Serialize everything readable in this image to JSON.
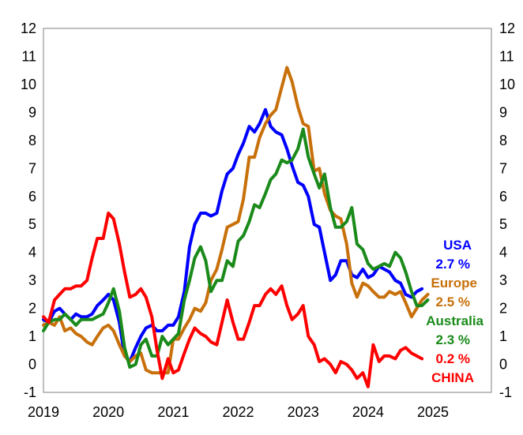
{
  "chart_data": {
    "type": "line",
    "title": "",
    "xlabel": "",
    "ylabel": "",
    "ylim": [
      -1,
      12
    ],
    "xlim": [
      2019.0,
      2025.9
    ],
    "y_ticks": [
      "12",
      "11",
      "10",
      "9",
      "8",
      "7",
      "6",
      "5",
      "4",
      "3",
      "2",
      "1",
      "0",
      "-1"
    ],
    "x_ticks": [
      "2019",
      "2020",
      "2021",
      "2022",
      "2023",
      "2024",
      "2025"
    ],
    "grid": false,
    "legend": "right-side labels",
    "series": [
      {
        "name": "USA",
        "color": "#0000ff",
        "latest": "2.7 %",
        "x": [
          2019.0,
          2019.08,
          2019.17,
          2019.25,
          2019.33,
          2019.42,
          2019.5,
          2019.58,
          2019.67,
          2019.75,
          2019.83,
          2019.92,
          2020.0,
          2020.08,
          2020.17,
          2020.25,
          2020.33,
          2020.42,
          2020.5,
          2020.58,
          2020.67,
          2020.75,
          2020.83,
          2020.92,
          2021.0,
          2021.08,
          2021.17,
          2021.25,
          2021.33,
          2021.42,
          2021.5,
          2021.58,
          2021.67,
          2021.75,
          2021.83,
          2021.92,
          2022.0,
          2022.08,
          2022.17,
          2022.25,
          2022.33,
          2022.42,
          2022.5,
          2022.58,
          2022.67,
          2022.75,
          2022.83,
          2022.92,
          2023.0,
          2023.08,
          2023.17,
          2023.25,
          2023.33,
          2023.42,
          2023.5,
          2023.58,
          2023.67,
          2023.75,
          2023.83,
          2023.92,
          2024.0,
          2024.08,
          2024.17,
          2024.25,
          2024.33,
          2024.42,
          2024.5,
          2024.58,
          2024.67,
          2024.75,
          2024.83
        ],
        "values": [
          1.6,
          1.5,
          1.9,
          2.0,
          1.8,
          1.6,
          1.8,
          1.7,
          1.7,
          1.8,
          2.1,
          2.3,
          2.5,
          2.3,
          1.5,
          0.3,
          0.1,
          0.6,
          1.0,
          1.3,
          1.4,
          1.2,
          1.2,
          1.4,
          1.4,
          1.7,
          2.6,
          4.2,
          5.0,
          5.4,
          5.4,
          5.3,
          5.4,
          6.2,
          6.8,
          7.0,
          7.5,
          7.9,
          8.5,
          8.3,
          8.6,
          9.1,
          8.5,
          8.3,
          8.2,
          7.7,
          7.1,
          6.5,
          6.4,
          6.0,
          5.0,
          4.9,
          4.0,
          3.0,
          3.2,
          3.7,
          3.7,
          3.2,
          3.1,
          3.4,
          3.1,
          3.2,
          3.5,
          3.4,
          3.3,
          3.0,
          2.9,
          2.5,
          2.4,
          2.6,
          2.7
        ]
      },
      {
        "name": "Europe",
        "color": "#c8700a",
        "latest": "2.5 %",
        "x": [
          2019.0,
          2019.08,
          2019.17,
          2019.25,
          2019.33,
          2019.42,
          2019.5,
          2019.58,
          2019.67,
          2019.75,
          2019.83,
          2019.92,
          2020.0,
          2020.08,
          2020.17,
          2020.25,
          2020.33,
          2020.42,
          2020.5,
          2020.58,
          2020.67,
          2020.75,
          2020.83,
          2020.92,
          2021.0,
          2021.08,
          2021.17,
          2021.25,
          2021.33,
          2021.42,
          2021.5,
          2021.58,
          2021.67,
          2021.75,
          2021.83,
          2021.92,
          2022.0,
          2022.08,
          2022.17,
          2022.25,
          2022.33,
          2022.42,
          2022.5,
          2022.58,
          2022.67,
          2022.75,
          2022.83,
          2022.92,
          2023.0,
          2023.08,
          2023.17,
          2023.25,
          2023.33,
          2023.42,
          2023.5,
          2023.58,
          2023.67,
          2023.75,
          2023.83,
          2023.92,
          2024.0,
          2024.08,
          2024.17,
          2024.25,
          2024.33,
          2024.42,
          2024.5,
          2024.58,
          2024.67,
          2024.75,
          2024.83,
          2024.92
        ],
        "values": [
          1.4,
          1.5,
          1.4,
          1.7,
          1.2,
          1.3,
          1.1,
          1.0,
          0.8,
          0.7,
          1.0,
          1.3,
          1.4,
          1.2,
          0.7,
          0.3,
          0.1,
          0.3,
          0.4,
          -0.2,
          -0.3,
          -0.3,
          -0.3,
          -0.3,
          0.9,
          0.9,
          1.3,
          1.6,
          2.0,
          1.9,
          2.2,
          3.0,
          3.4,
          4.1,
          4.9,
          5.0,
          5.1,
          5.9,
          7.4,
          7.4,
          8.1,
          8.6,
          8.9,
          9.1,
          9.9,
          10.6,
          10.1,
          9.2,
          8.6,
          8.5,
          6.9,
          7.0,
          6.1,
          5.5,
          5.3,
          5.2,
          4.3,
          2.9,
          2.4,
          2.9,
          2.8,
          2.6,
          2.4,
          2.4,
          2.6,
          2.5,
          2.6,
          2.2,
          1.7,
          2.0,
          2.3,
          2.5
        ]
      },
      {
        "name": "Australia",
        "color": "#1a8a1a",
        "latest": "2.3 %",
        "x": [
          2019.0,
          2019.08,
          2019.17,
          2019.25,
          2019.33,
          2019.42,
          2019.5,
          2019.58,
          2019.67,
          2019.75,
          2019.83,
          2019.92,
          2020.0,
          2020.08,
          2020.17,
          2020.25,
          2020.33,
          2020.42,
          2020.5,
          2020.58,
          2020.67,
          2020.75,
          2020.83,
          2020.92,
          2021.0,
          2021.08,
          2021.17,
          2021.25,
          2021.33,
          2021.42,
          2021.5,
          2021.58,
          2021.67,
          2021.75,
          2021.83,
          2021.92,
          2022.0,
          2022.08,
          2022.17,
          2022.25,
          2022.33,
          2022.42,
          2022.5,
          2022.58,
          2022.67,
          2022.75,
          2022.83,
          2022.92,
          2023.0,
          2023.08,
          2023.17,
          2023.25,
          2023.33,
          2023.42,
          2023.5,
          2023.58,
          2023.67,
          2023.75,
          2023.83,
          2023.92,
          2024.0,
          2024.08,
          2024.17,
          2024.25,
          2024.33,
          2024.42,
          2024.5,
          2024.58,
          2024.67,
          2024.75,
          2024.83,
          2024.92
        ],
        "values": [
          1.2,
          1.5,
          1.6,
          1.6,
          1.8,
          1.6,
          1.4,
          1.6,
          1.6,
          1.6,
          1.7,
          1.8,
          2.2,
          2.7,
          1.9,
          0.6,
          -0.1,
          0.0,
          0.7,
          0.9,
          0.3,
          0.3,
          1.0,
          0.7,
          0.9,
          1.1,
          2.3,
          3.0,
          3.8,
          4.2,
          3.7,
          2.6,
          3.0,
          3.0,
          3.7,
          3.5,
          4.4,
          4.6,
          5.1,
          5.7,
          5.6,
          6.1,
          6.6,
          6.8,
          7.3,
          7.2,
          7.3,
          7.7,
          8.4,
          7.4,
          6.8,
          6.3,
          6.8,
          5.6,
          4.9,
          4.9,
          5.1,
          5.6,
          4.3,
          4.1,
          3.6,
          3.4,
          3.5,
          3.6,
          3.5,
          4.0,
          3.8,
          3.3,
          2.6,
          2.1,
          2.1,
          2.3
        ]
      },
      {
        "name": "CHINA",
        "color": "#ff0000",
        "latest": "0.2 %",
        "x": [
          2019.0,
          2019.08,
          2019.17,
          2019.25,
          2019.33,
          2019.42,
          2019.5,
          2019.58,
          2019.67,
          2019.75,
          2019.83,
          2019.92,
          2020.0,
          2020.08,
          2020.17,
          2020.25,
          2020.33,
          2020.42,
          2020.5,
          2020.58,
          2020.67,
          2020.75,
          2020.83,
          2020.92,
          2021.0,
          2021.08,
          2021.17,
          2021.25,
          2021.33,
          2021.42,
          2021.5,
          2021.58,
          2021.67,
          2021.75,
          2021.83,
          2021.92,
          2022.0,
          2022.08,
          2022.17,
          2022.25,
          2022.33,
          2022.42,
          2022.5,
          2022.58,
          2022.67,
          2022.75,
          2022.83,
          2022.92,
          2023.0,
          2023.08,
          2023.17,
          2023.25,
          2023.33,
          2023.42,
          2023.5,
          2023.58,
          2023.67,
          2023.75,
          2023.83,
          2023.92,
          2024.0,
          2024.08,
          2024.17,
          2024.25,
          2024.33,
          2024.42,
          2024.5,
          2024.58,
          2024.67,
          2024.75,
          2024.83
        ],
        "values": [
          1.7,
          1.5,
          2.3,
          2.5,
          2.7,
          2.7,
          2.8,
          2.8,
          3.0,
          3.8,
          4.5,
          4.5,
          5.4,
          5.2,
          4.3,
          3.3,
          2.4,
          2.5,
          2.7,
          2.4,
          1.7,
          0.5,
          -0.5,
          0.2,
          -0.3,
          -0.2,
          0.4,
          0.9,
          1.3,
          1.1,
          1.0,
          0.8,
          0.7,
          1.5,
          2.3,
          1.5,
          0.9,
          0.9,
          1.5,
          2.1,
          2.1,
          2.5,
          2.7,
          2.5,
          2.8,
          2.1,
          1.6,
          1.8,
          2.1,
          1.0,
          0.7,
          0.1,
          0.2,
          0.0,
          -0.3,
          0.1,
          0.0,
          -0.2,
          -0.5,
          -0.3,
          -0.8,
          0.7,
          0.1,
          0.3,
          0.3,
          0.2,
          0.5,
          0.6,
          0.4,
          0.3,
          0.2
        ]
      }
    ]
  }
}
